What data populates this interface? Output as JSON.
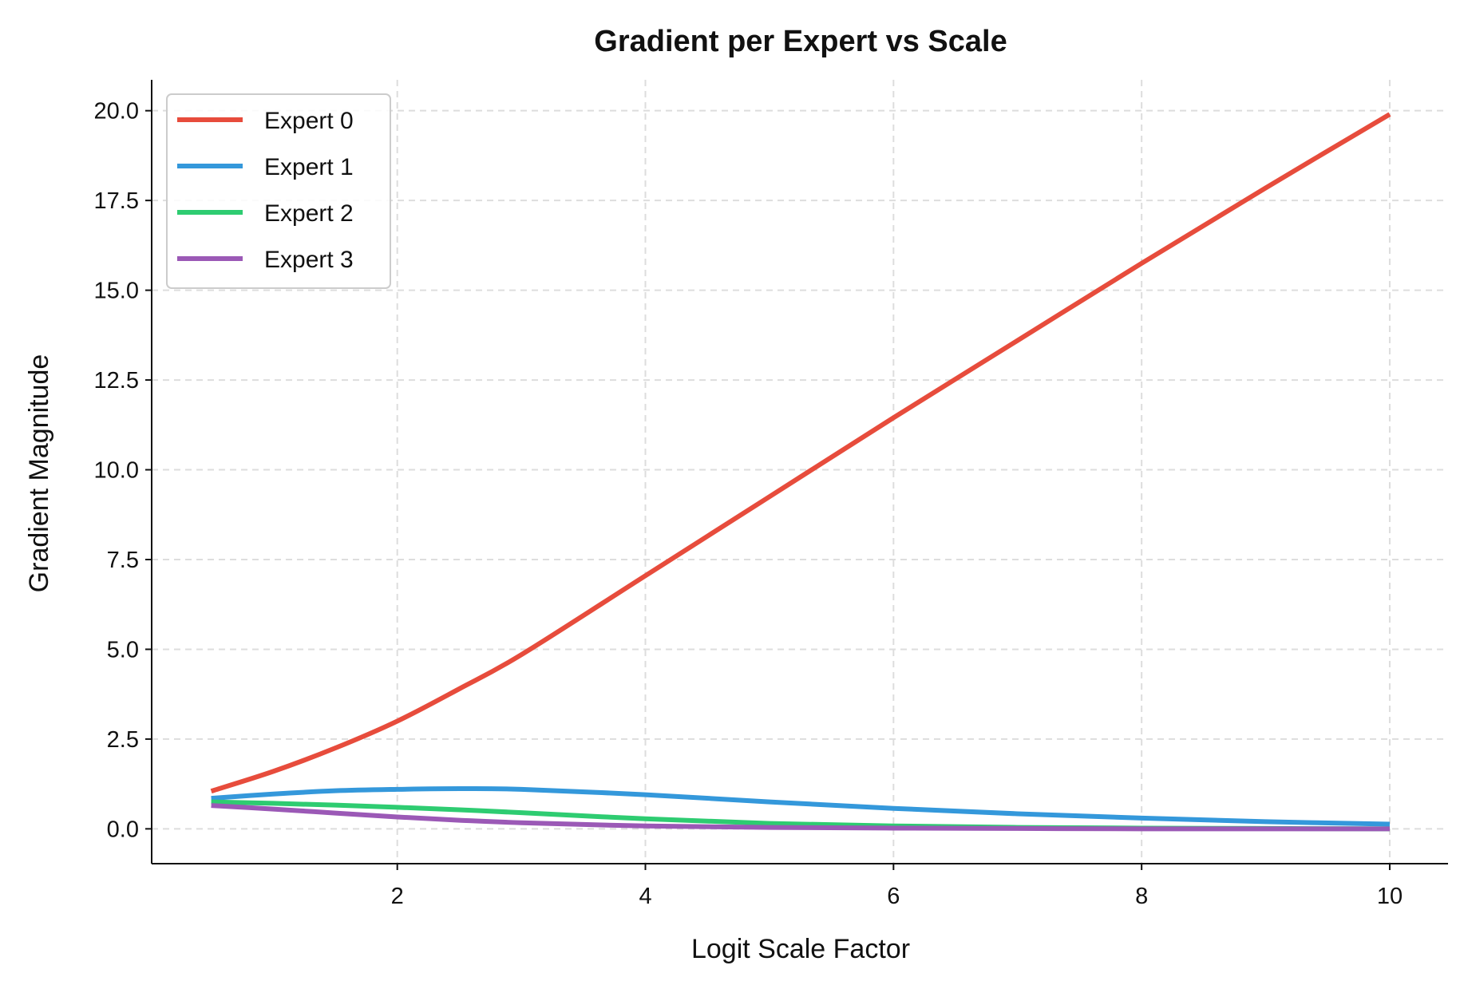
{
  "chart_data": {
    "type": "line",
    "title": "Gradient per Expert vs Scale",
    "xlabel": "Logit Scale Factor",
    "ylabel": "Gradient Magnitude",
    "xlim": [
      0.02,
      10.47
    ],
    "ylim": [
      -0.97,
      20.86
    ],
    "xticks": [
      2,
      4,
      6,
      8,
      10
    ],
    "xtick_labels": [
      "2",
      "4",
      "6",
      "8",
      "10"
    ],
    "yticks": [
      0,
      2.5,
      5,
      7.5,
      10,
      12.5,
      15,
      17.5,
      20
    ],
    "ytick_labels": [
      "0.0",
      "2.5",
      "5.0",
      "7.5",
      "10.0",
      "12.5",
      "15.0",
      "17.5",
      "20.0"
    ],
    "grid": true,
    "legend_position": "top-left",
    "x": [
      0.5,
      1,
      1.5,
      2,
      2.5,
      3,
      4,
      5,
      6,
      7,
      8,
      9,
      10
    ],
    "series": [
      {
        "name": "Expert 0",
        "color": "#e74c3c",
        "values": [
          1.05,
          1.6,
          2.25,
          3.0,
          3.9,
          4.85,
          7.05,
          9.25,
          11.45,
          13.6,
          15.75,
          17.85,
          19.9
        ]
      },
      {
        "name": "Expert 1",
        "color": "#3498db",
        "values": [
          0.85,
          0.97,
          1.06,
          1.1,
          1.12,
          1.1,
          0.95,
          0.75,
          0.57,
          0.42,
          0.3,
          0.2,
          0.13
        ]
      },
      {
        "name": "Expert 2",
        "color": "#2ecc71",
        "values": [
          0.75,
          0.71,
          0.66,
          0.6,
          0.53,
          0.45,
          0.28,
          0.15,
          0.08,
          0.04,
          0.02,
          0.01,
          0.0
        ]
      },
      {
        "name": "Expert 3",
        "color": "#9b59b6",
        "values": [
          0.65,
          0.55,
          0.44,
          0.33,
          0.24,
          0.17,
          0.08,
          0.04,
          0.02,
          0.01,
          0.0,
          0.0,
          0.0
        ]
      }
    ]
  }
}
